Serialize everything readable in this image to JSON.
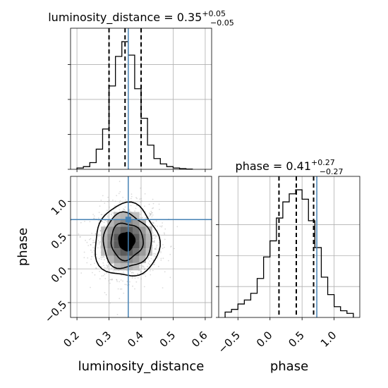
{
  "chart_data": [
    {
      "type": "histogram",
      "panel": "top-left",
      "title_param": "luminosity_distance",
      "title_value": "0.35",
      "title_plus": "+0.05",
      "title_minus": "−0.05",
      "xlim": [
        0.18,
        0.62
      ],
      "bin_edges": [
        0.2,
        0.22,
        0.24,
        0.26,
        0.28,
        0.3,
        0.32,
        0.34,
        0.36,
        0.38,
        0.4,
        0.42,
        0.44,
        0.46,
        0.48,
        0.5,
        0.52,
        0.54,
        0.56
      ],
      "counts": [
        0.01,
        0.02,
        0.05,
        0.15,
        0.3,
        0.62,
        0.84,
        0.95,
        0.85,
        0.6,
        0.38,
        0.18,
        0.08,
        0.04,
        0.02,
        0.01,
        0.005,
        0.002
      ],
      "ymax": 1.05,
      "quantiles": [
        0.3,
        0.35,
        0.4
      ],
      "truth": 0.36,
      "yticks": [
        0.0,
        0.26,
        0.52,
        0.78
      ]
    },
    {
      "type": "histogram",
      "panel": "bottom-right",
      "title_param": "phase",
      "title_value": "0.41",
      "title_plus": "+0.27",
      "title_minus": "−0.27",
      "xlim": [
        -0.8,
        1.4
      ],
      "bin_edges": [
        -0.7,
        -0.6,
        -0.5,
        -0.4,
        -0.3,
        -0.2,
        -0.1,
        0.0,
        0.1,
        0.2,
        0.3,
        0.4,
        0.5,
        0.6,
        0.7,
        0.8,
        0.9,
        1.0,
        1.1,
        1.2,
        1.3
      ],
      "counts": [
        0.04,
        0.06,
        0.1,
        0.13,
        0.18,
        0.29,
        0.45,
        0.57,
        0.74,
        0.86,
        0.92,
        0.95,
        0.88,
        0.72,
        0.52,
        0.3,
        0.17,
        0.08,
        0.05,
        0.03
      ],
      "ymax": 1.05,
      "quantiles": [
        0.14,
        0.41,
        0.68
      ],
      "truth": 0.73,
      "xticks": [
        -0.5,
        0.0,
        0.5,
        1.0
      ],
      "xtick_labels": [
        "−0.5",
        "0.0",
        "0.5",
        "1.0"
      ],
      "yticks": [
        0.0,
        0.23,
        0.46,
        0.69
      ],
      "xlabel": "phase"
    },
    {
      "type": "contour",
      "panel": "bottom-left",
      "xlim": [
        0.18,
        0.62
      ],
      "ylim": [
        -0.72,
        1.37
      ],
      "xticks": [
        0.2,
        0.3,
        0.4,
        0.5,
        0.6
      ],
      "xtick_labels": [
        "0.2",
        "0.3",
        "0.4",
        "0.5",
        "0.6"
      ],
      "yticks": [
        -0.5,
        0.0,
        0.5,
        1.0
      ],
      "ytick_labels": [
        "−0.5",
        "0.0",
        "0.5",
        "1.0"
      ],
      "xlabel": "luminosity_distance",
      "ylabel": "phase",
      "center": [
        0.355,
        0.41
      ],
      "sigma": [
        0.05,
        0.27
      ],
      "contour_levels_sigma": [
        0.5,
        1.0,
        1.5,
        2.0
      ],
      "truth": [
        0.36,
        0.73
      ]
    }
  ]
}
